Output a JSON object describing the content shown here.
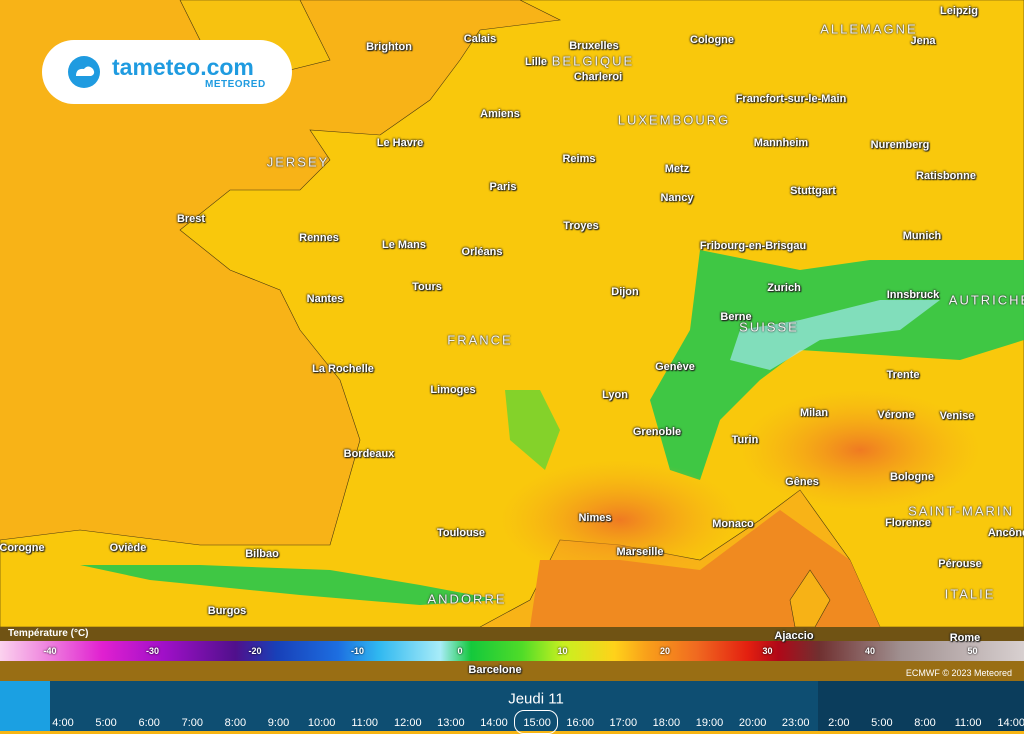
{
  "logo": {
    "name": "tameteo.com",
    "tagline": "METEORED"
  },
  "map": {
    "cities": [
      "Brighton",
      "Calais",
      "Bruxelles",
      "Cologne",
      "Leipzig",
      "Jena",
      "Lille",
      "Charleroi",
      "Francfort-sur-le-Main",
      "Amiens",
      "Le Havre",
      "Mannheim",
      "Nuremberg",
      "Reims",
      "Metz",
      "Ratisbonne",
      "Paris",
      "Stuttgart",
      "Nancy",
      "Brest",
      "Troyes",
      "Munich",
      "Rennes",
      "Le Mans",
      "Orléans",
      "Fribourg-en-Brisgau",
      "Zurich",
      "Innsbruck",
      "Tours",
      "Dijon",
      "Nantes",
      "Berne",
      "Genève",
      "La Rochelle",
      "Trente",
      "Lyon",
      "Limoges",
      "Milan",
      "Vérone",
      "Venise",
      "Grenoble",
      "Turin",
      "Bordeaux",
      "Bologne",
      "Gênes",
      "Florence",
      "Nimes",
      "Monaco",
      "Toulouse",
      "Marseille",
      "Corogne",
      "Oviède",
      "Bilbao",
      "Pérouse",
      "Ancône",
      "Burgos",
      "Ajaccio",
      "Rome",
      "Barcelone"
    ],
    "countries": [
      "ALLEMAGNE",
      "BELGIQUE",
      "LUXEMBOURG",
      "FRANCE",
      "SUISSE",
      "AUTRICHE",
      "ITALIE",
      "ANDORRE",
      "JERSEY",
      "SAINT-MARIN"
    ]
  },
  "legend": {
    "title": "Température (°C)",
    "ticks": [
      -40,
      -30,
      -20,
      -10,
      0,
      10,
      20,
      30,
      40,
      50
    ]
  },
  "credit": "ECMWF © 2023 Meteored",
  "timeline": {
    "day": "Jeudi 11",
    "times": [
      "4:00",
      "5:00",
      "6:00",
      "7:00",
      "8:00",
      "9:00",
      "10:00",
      "11:00",
      "12:00",
      "13:00",
      "14:00",
      "15:00",
      "16:00",
      "17:00",
      "18:00",
      "19:00",
      "20:00",
      "23:00",
      "2:00",
      "5:00",
      "8:00",
      "11:00",
      "14:00"
    ]
  }
}
